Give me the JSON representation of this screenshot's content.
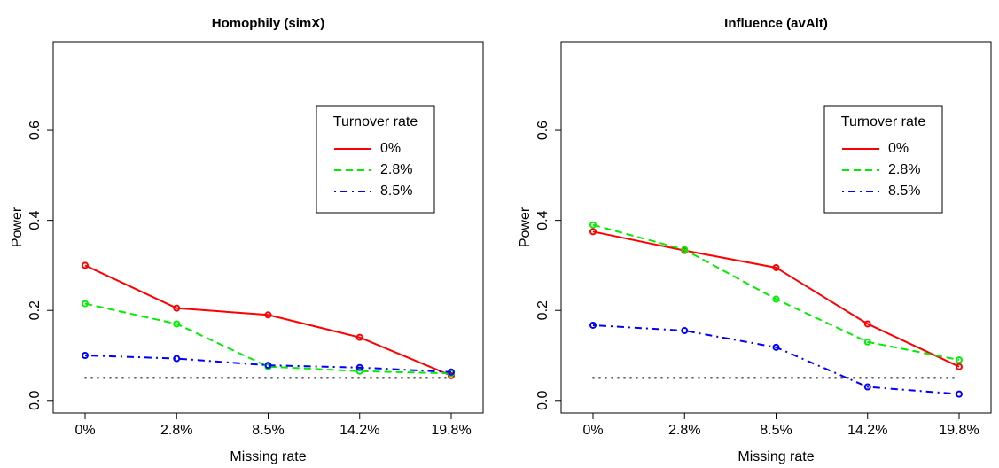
{
  "chart_data": [
    {
      "type": "line",
      "title": "Homophily (simX)",
      "xlabel": "Missing rate",
      "ylabel": "Power",
      "categories": [
        "0%",
        "2.8%",
        "8.5%",
        "14.2%",
        "19.8%"
      ],
      "ylim": [
        -0.028,
        0.797
      ],
      "yticks": [
        {
          "value": 0,
          "label": "0.0"
        },
        0.2,
        0.4,
        0.6
      ],
      "reference_line": 0.05,
      "legend": "upper right",
      "legend_title": "Turnover rate",
      "series": [
        {
          "name": "0%",
          "color": "#ff0000",
          "linestyle": "solid",
          "values": [
            0.3,
            0.205,
            0.19,
            0.14,
            0.055
          ]
        },
        {
          "name": "2.8%",
          "color": "#00ee00",
          "linestyle": "dashed",
          "values": [
            0.215,
            0.17,
            0.075,
            0.065,
            0.06
          ]
        },
        {
          "name": "8.5%",
          "color": "#0000ff",
          "linestyle": "dashdot",
          "values": [
            0.1,
            0.093,
            0.078,
            0.073,
            0.063
          ]
        }
      ]
    },
    {
      "type": "line",
      "title": "Influence (avAlt)",
      "xlabel": "Missing rate",
      "ylabel": "Power",
      "categories": [
        "0%",
        "2.8%",
        "8.5%",
        "14.2%",
        "19.8%"
      ],
      "ylim": [
        -0.028,
        0.797
      ],
      "yticks": [
        {
          "value": 0,
          "label": "0.0"
        },
        0.2,
        0.4,
        0.6
      ],
      "reference_line": 0.05,
      "legend": "upper right",
      "legend_title": "Turnover rate",
      "series": [
        {
          "name": "0%",
          "color": "#ff0000",
          "linestyle": "solid",
          "values": [
            0.375,
            0.333,
            0.295,
            0.17,
            0.075
          ]
        },
        {
          "name": "2.8%",
          "color": "#00ee00",
          "linestyle": "dashed",
          "values": [
            0.39,
            0.335,
            0.225,
            0.13,
            0.09
          ]
        },
        {
          "name": "8.5%",
          "color": "#0000ff",
          "linestyle": "dashdot",
          "values": [
            0.167,
            0.155,
            0.118,
            0.03,
            0.014
          ]
        }
      ]
    }
  ]
}
